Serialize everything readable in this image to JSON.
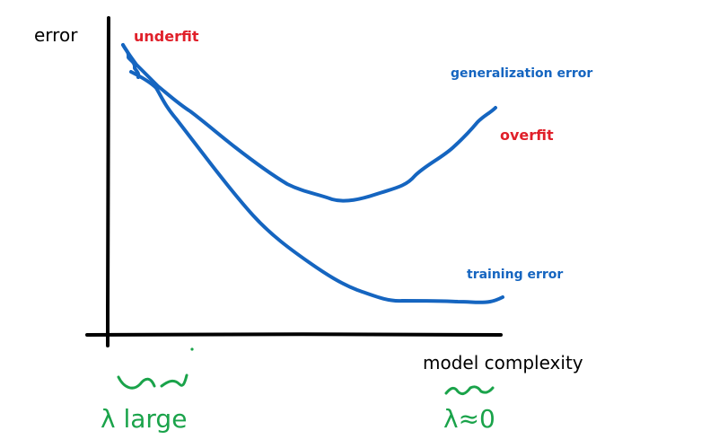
{
  "labels": {
    "y_axis": "error",
    "x_axis": "model complexity",
    "underfit": "underfit",
    "overfit": "overfit",
    "generalization_error": "generalization error",
    "training_error": "training error",
    "lambda_large": "λ large",
    "lambda_zero": "λ≈0"
  },
  "colors": {
    "axis": "#000000",
    "curves": "#1565c0",
    "labels_red": "#e0202a",
    "labels_blue": "#1565c0",
    "annotations_green": "#1aa34a"
  },
  "icons": {
    "regularization_small": "tilde-doodle-icon",
    "regularization_large": "tilde-doodle-icon"
  }
}
